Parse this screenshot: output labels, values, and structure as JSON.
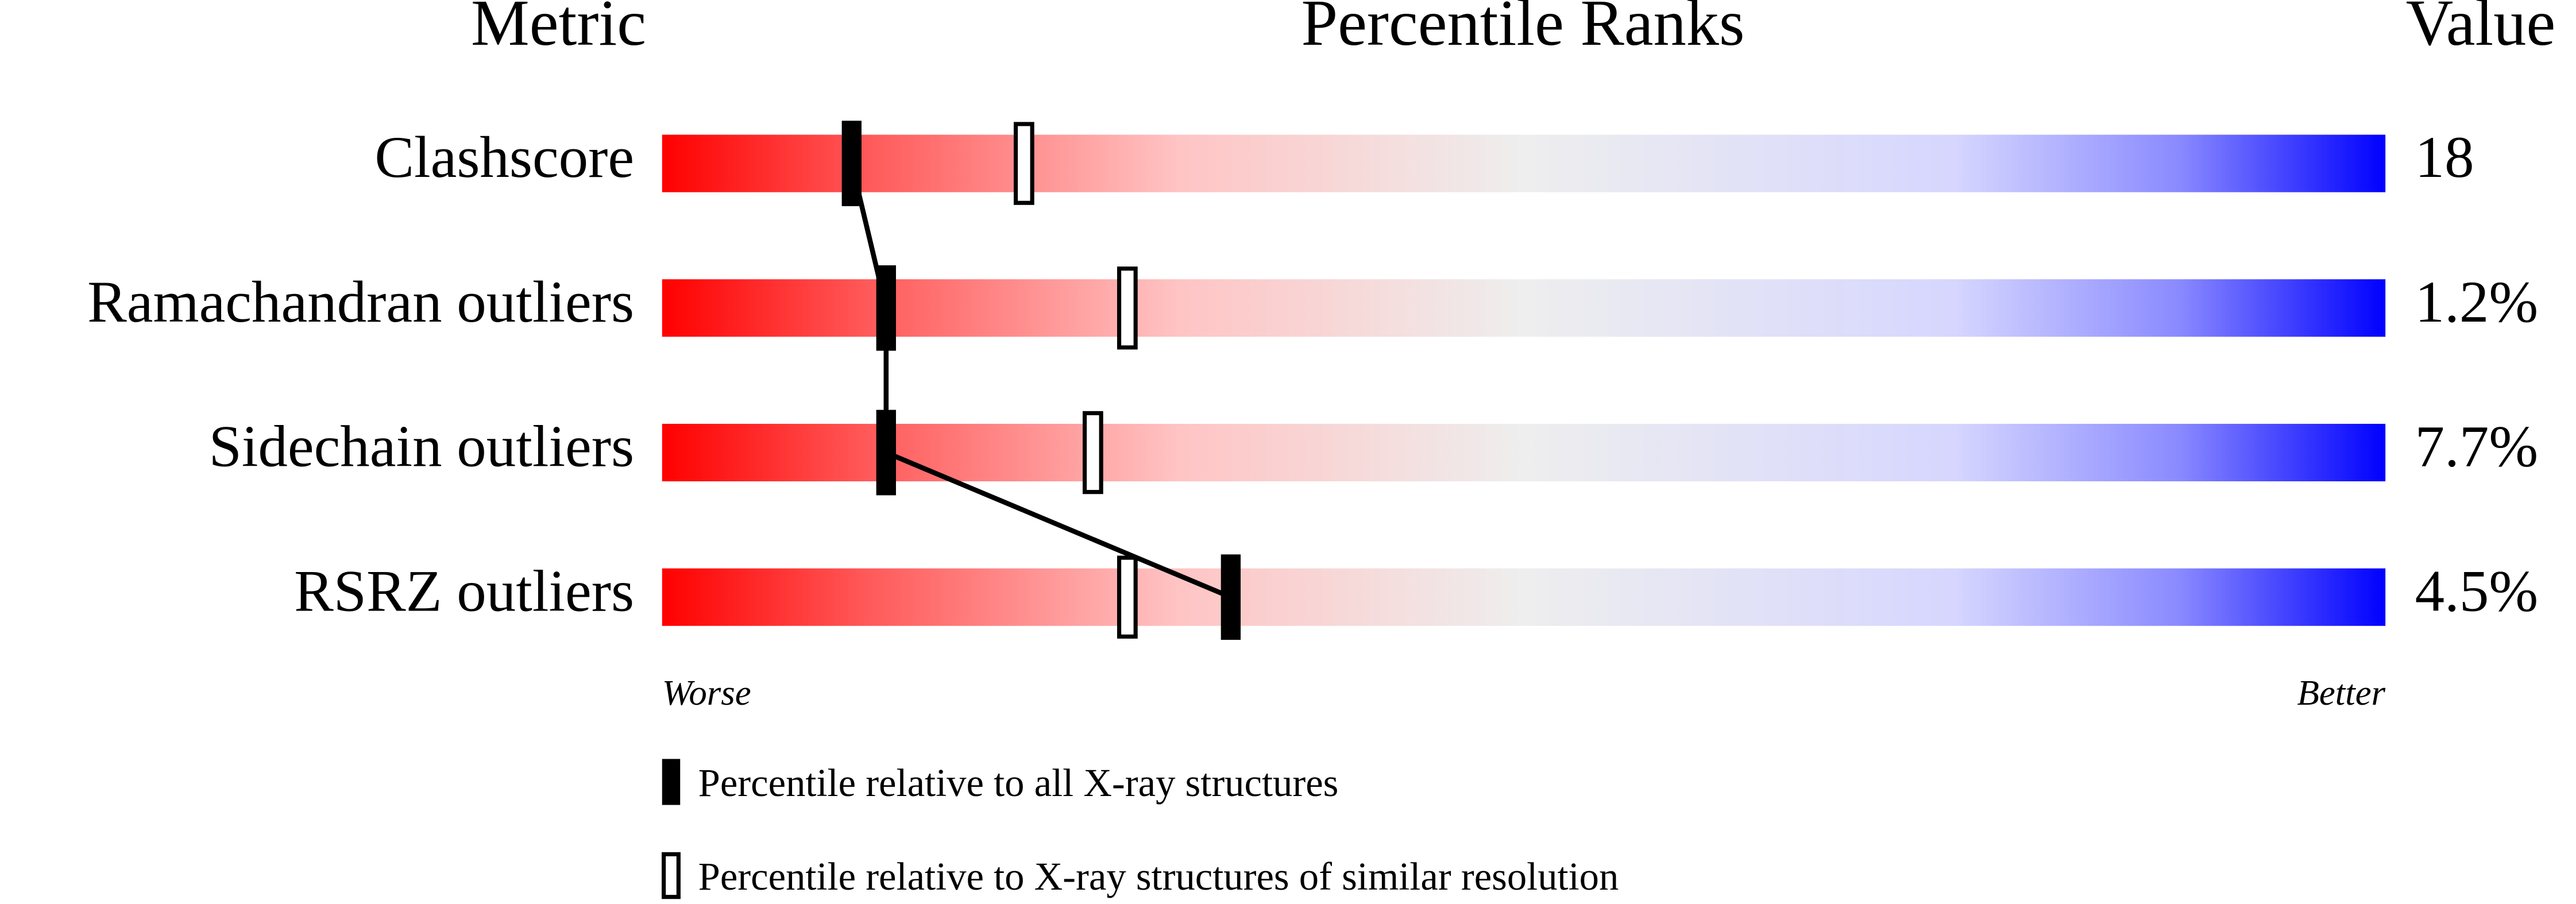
{
  "chart_data": {
    "type": "percentile-slider",
    "headers": {
      "metric": "Metric",
      "ranks": "Percentile Ranks",
      "value": "Value"
    },
    "categories": [
      "Clashscore",
      "Ramachandran outliers",
      "Sidechain outliers",
      "RSRZ outliers"
    ],
    "metric_values": [
      "18",
      "1.2%",
      "7.7%",
      "4.5%"
    ],
    "series": [
      {
        "name": "Percentile relative to all X-ray structures",
        "color": "#000000",
        "filled": true,
        "values": [
          11,
          13,
          13,
          33
        ]
      },
      {
        "name": "Percentile relative to X-ray structures of similar resolution",
        "color": "#000000",
        "filled": false,
        "values": [
          21,
          27,
          25,
          27
        ]
      }
    ],
    "xlim": [
      0,
      100
    ],
    "worse_label": "Worse",
    "better_label": "Better"
  }
}
